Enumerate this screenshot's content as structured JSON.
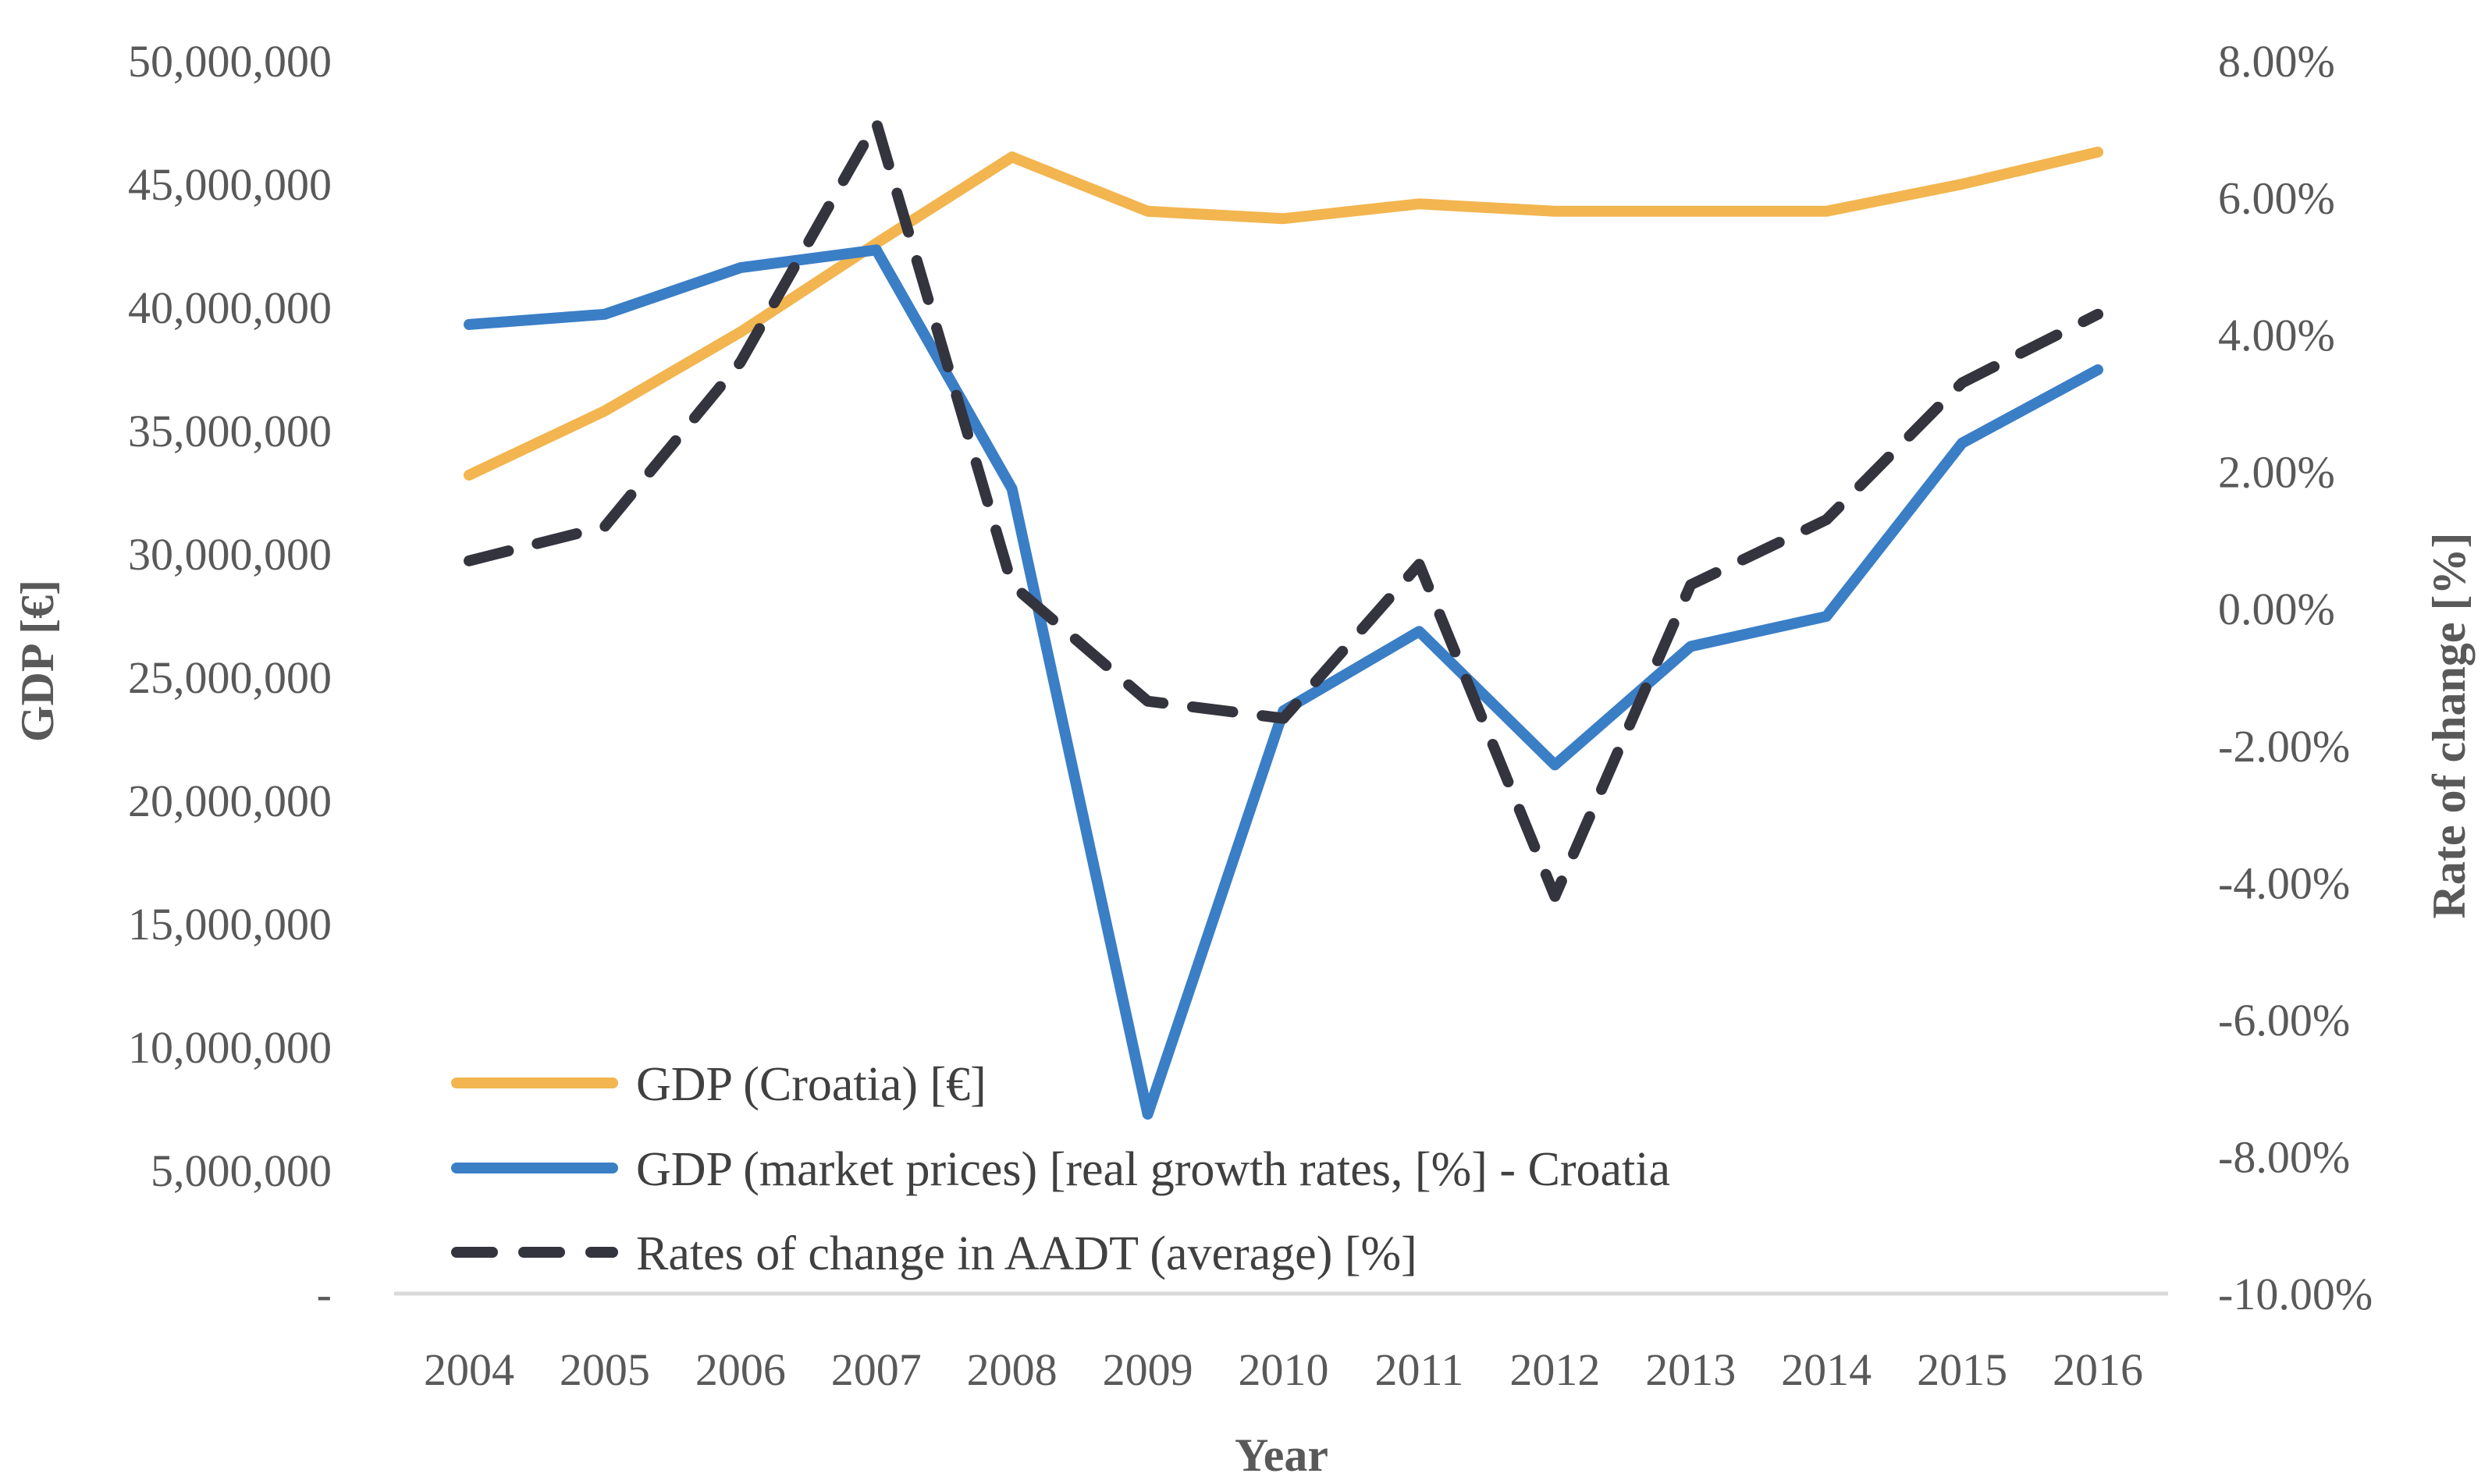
{
  "chart_data": {
    "type": "line",
    "title": "",
    "xlabel": "Year",
    "ylabel": "GDP [€]",
    "y2label": "Rate of change [%]",
    "categories": [
      "2004",
      "2005",
      "2006",
      "2007",
      "2008",
      "2009",
      "2010",
      "2011",
      "2012",
      "2013",
      "2014",
      "2015",
      "2016"
    ],
    "ylim": [
      0,
      50000000
    ],
    "y2lim": [
      -10,
      8
    ],
    "y_ticks": [
      {
        "value": 0,
        "label": "-"
      },
      {
        "value": 5000000,
        "label": "5,000,000"
      },
      {
        "value": 10000000,
        "label": "10,000,000"
      },
      {
        "value": 15000000,
        "label": "15,000,000"
      },
      {
        "value": 20000000,
        "label": "20,000,000"
      },
      {
        "value": 25000000,
        "label": "25,000,000"
      },
      {
        "value": 30000000,
        "label": "30,000,000"
      },
      {
        "value": 35000000,
        "label": "35,000,000"
      },
      {
        "value": 40000000,
        "label": "40,000,000"
      },
      {
        "value": 45000000,
        "label": "45,000,000"
      },
      {
        "value": 50000000,
        "label": "50,000,000"
      }
    ],
    "y2_ticks": [
      {
        "value": -10,
        "label": "-10.00%"
      },
      {
        "value": -8,
        "label": "-8.00%"
      },
      {
        "value": -6,
        "label": "-6.00%"
      },
      {
        "value": -4,
        "label": "-4.00%"
      },
      {
        "value": -2,
        "label": "-2.00%"
      },
      {
        "value": 0,
        "label": "0.00%"
      },
      {
        "value": 2,
        "label": "2.00%"
      },
      {
        "value": 4,
        "label": "4.00%"
      },
      {
        "value": 6,
        "label": "6.00%"
      },
      {
        "value": 8,
        "label": "8.00%"
      }
    ],
    "series": [
      {
        "name": "GDP (Croatia) [€]",
        "axis": "left",
        "color": "#F2B54F",
        "dash": "solid",
        "values": [
          33200000,
          35800000,
          39000000,
          42600000,
          46100000,
          43900000,
          43600000,
          44200000,
          43900000,
          43900000,
          43900000,
          45000000,
          46300000
        ]
      },
      {
        "name": "GDP (market prices) [real growth rates, [%] - Croatia",
        "axis": "right",
        "color": "#3A7EC6",
        "dash": "solid",
        "values": [
          4.15,
          4.3,
          4.98,
          5.24,
          1.75,
          -7.38,
          -1.49,
          -0.33,
          -2.28,
          -0.55,
          -0.11,
          2.42,
          3.49
        ]
      },
      {
        "name": "Rates of change in AADT (average) [%]",
        "axis": "right",
        "color": "#34343E",
        "dash": "dashed",
        "values": [
          0.7,
          1.2,
          3.6,
          7.1,
          0.35,
          -1.35,
          -1.6,
          0.65,
          -4.2,
          0.35,
          1.3,
          3.3,
          4.3
        ]
      }
    ],
    "legend_position": "bottom-left",
    "grid": false
  }
}
